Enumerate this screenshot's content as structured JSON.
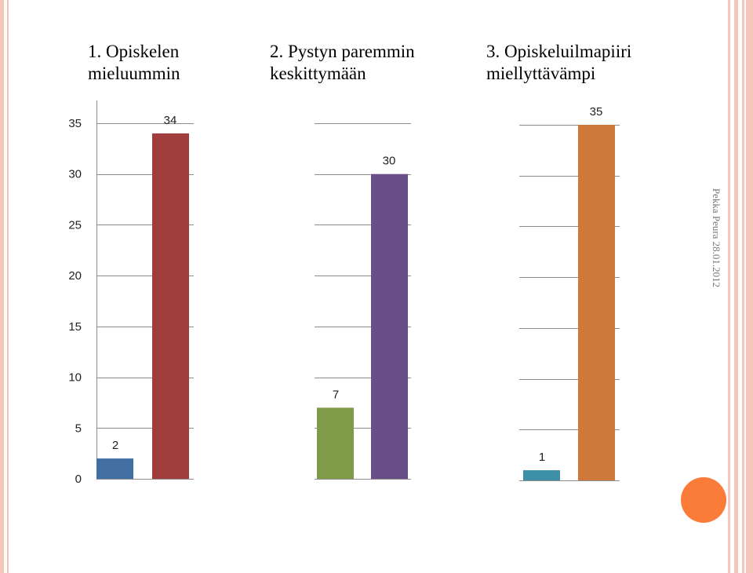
{
  "author_label": "Pekka Peura 28.01.2012",
  "colors": {
    "accent_dot": "#fb7b39",
    "frame": "#f6c7b8"
  },
  "chart_data": [
    {
      "type": "bar",
      "title": "1. Opiskelen\nmieluummin",
      "categories": [
        "",
        ""
      ],
      "values": [
        2,
        34
      ],
      "data_labels": [
        "2",
        "34"
      ],
      "colors": [
        "#416ea3",
        "#9f3e3c"
      ],
      "ylim": [
        0,
        35
      ],
      "yticks": [
        "0",
        "5",
        "10",
        "15",
        "20",
        "25",
        "30",
        "35"
      ],
      "grid": true,
      "xlabel": "",
      "ylabel": ""
    },
    {
      "type": "bar",
      "title": "2. Pystyn paremmin\nkeskittymään",
      "categories": [
        "",
        ""
      ],
      "values": [
        7,
        30
      ],
      "data_labels": [
        "7",
        "30"
      ],
      "colors": [
        "#7f9a48",
        "#684f88"
      ],
      "ylim": [
        0,
        35
      ],
      "grid": true,
      "xlabel": "",
      "ylabel": ""
    },
    {
      "type": "bar",
      "title": "3. Opiskeluilmapiiri\nmiellyttävämpi",
      "categories": [
        "",
        ""
      ],
      "values": [
        1,
        35
      ],
      "data_labels": [
        "1",
        "35"
      ],
      "colors": [
        "#3d8fa8",
        "#ce793a"
      ],
      "ylim": [
        0,
        35
      ],
      "grid": true,
      "xlabel": "",
      "ylabel": ""
    }
  ]
}
